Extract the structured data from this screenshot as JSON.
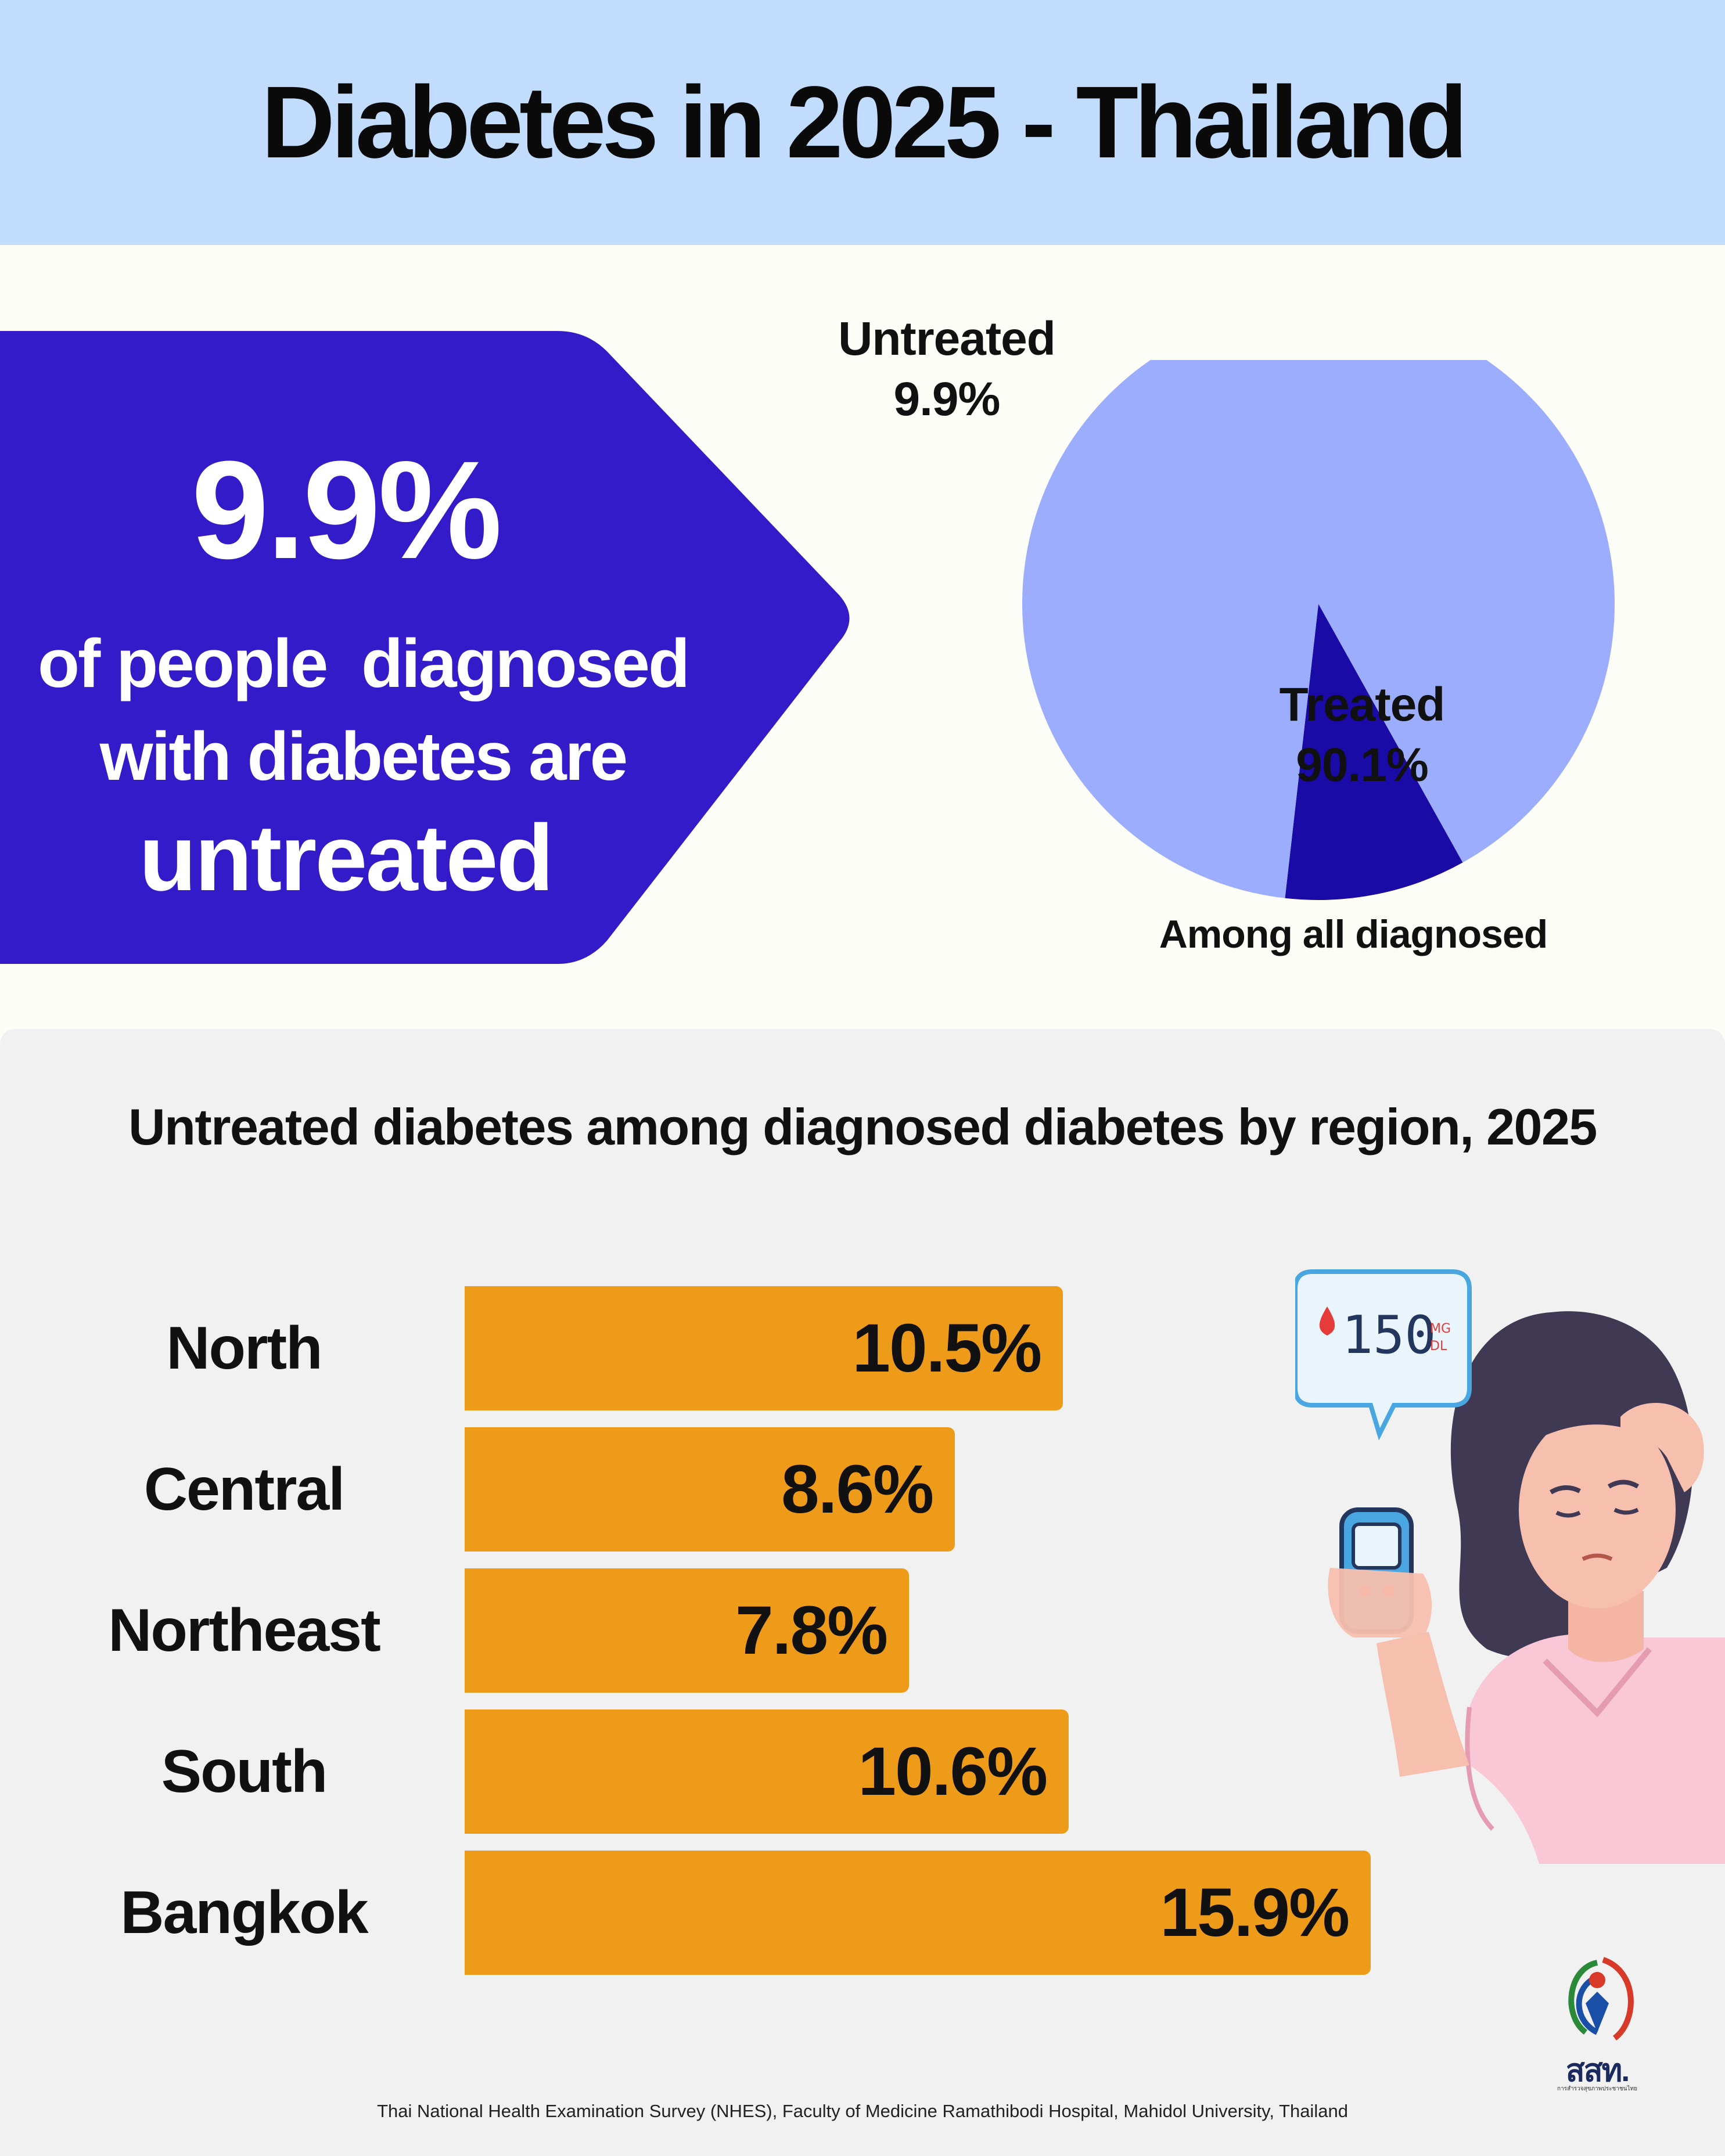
{
  "title": "Diabetes in 2025 - Thailand",
  "callout": {
    "big_value": "9.9%",
    "line1": "of people  diagnosed",
    "line2": "with diabetes are",
    "line3": "untreated"
  },
  "pie": {
    "untreated_name": "Untreated",
    "untreated_value": "9.9%",
    "treated_name": "Treated",
    "treated_value": "90.1%",
    "caption": "Among all diagnosed"
  },
  "glucose_meter_reading": "150",
  "glucose_meter_unit": "MG DL",
  "logo": {
    "text": "สสท.",
    "subtext": "การสำรวจสุขภาพประชาชนไทย"
  },
  "source": "Thai National Health Examination Survey (NHES), Faculty of Medicine Ramathibodi Hospital, Mahidol University, Thailand",
  "colors": {
    "header_bg": "#c2dcfd",
    "callout_bg": "#331bc9",
    "pie_treated": "#9cadfd",
    "pie_untreated": "#1a0aa6",
    "bar": "#ee9b1a",
    "bottom_bg": "#f1f1f1"
  },
  "chart_data": [
    {
      "type": "pie",
      "title": "",
      "caption": "Among all diagnosed",
      "categories": [
        "Untreated",
        "Treated"
      ],
      "values": [
        9.9,
        90.1
      ],
      "labels": [
        "9.9%",
        "90.1%"
      ],
      "colors": [
        "#1a0aa6",
        "#9cadfd"
      ]
    },
    {
      "type": "bar",
      "orientation": "horizontal",
      "title": "Untreated diabetes among diagnosed diabetes by region, 2025",
      "categories": [
        "North",
        "Central",
        "Northeast",
        "South",
        "Bangkok"
      ],
      "values": [
        10.5,
        8.6,
        7.8,
        10.6,
        15.9
      ],
      "labels": [
        "10.5%",
        "8.6%",
        "7.8%",
        "10.6%",
        "15.9%"
      ],
      "xlim": [
        0,
        15.9
      ],
      "grid": false,
      "color": "#ee9b1a"
    }
  ]
}
